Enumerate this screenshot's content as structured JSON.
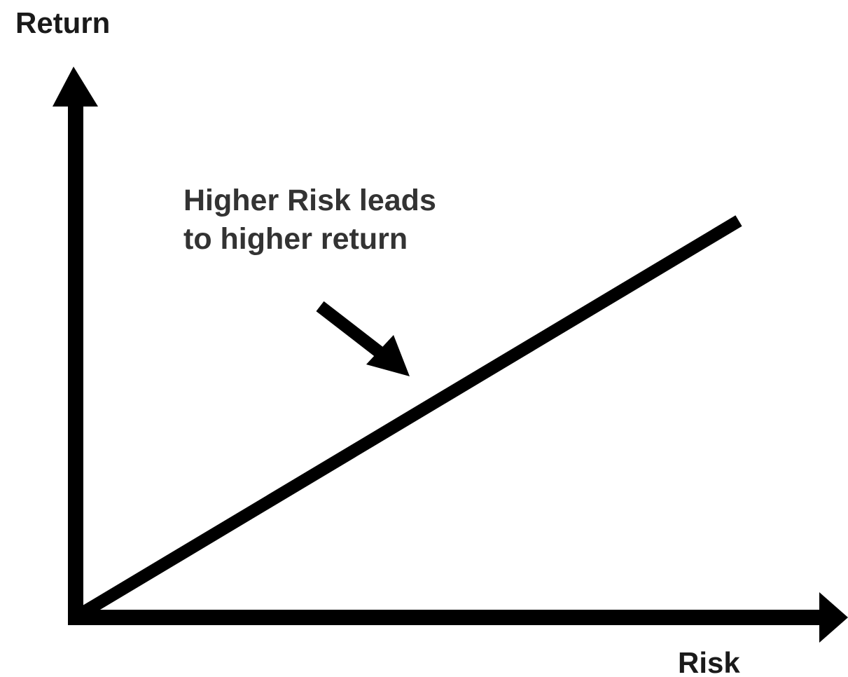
{
  "y_axis_label": "Return",
  "x_axis_label": "Risk",
  "annotation": [
    "Higher Risk leads",
    "to higher return"
  ]
}
